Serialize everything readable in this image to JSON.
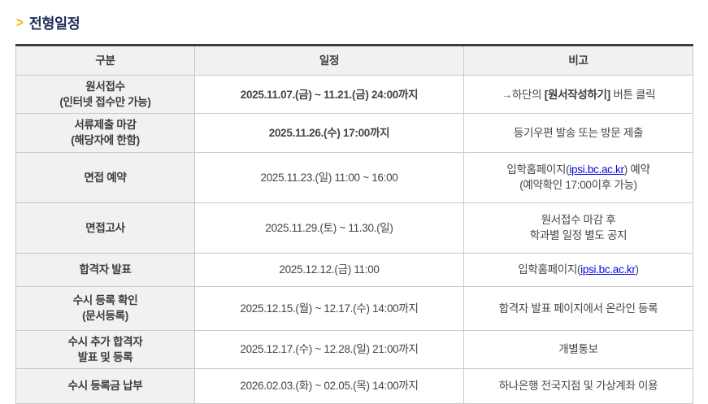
{
  "section": {
    "chevron": ">",
    "title": "전형일정"
  },
  "colors": {
    "accent_red": "#f50000",
    "accent_blue": "#0d08ee",
    "link_blue": "#0b06e0",
    "title_navy": "#1f2d5a",
    "chevron_gold": "#f7b500",
    "header_bg": "#f1f1ef"
  },
  "table": {
    "headers": {
      "category": "구분",
      "schedule": "일정",
      "remark": "비고"
    },
    "rows": [
      {
        "category": [
          "원서접수",
          "(인터넷 접수만 가능)"
        ],
        "schedule": "2025.11.07.(금) ~ 11.21.(금) 24:00까지",
        "remark_prefix": "→하단의 ",
        "remark_strong": "[원서작성하기]",
        "remark_suffix": " 버튼 클릭"
      },
      {
        "category": [
          "서류제출 마감",
          "(해당자에 한함)"
        ],
        "schedule": "2025.11.26.(수) 17:00까지",
        "remark": "등기우편 발송 또는 방문 제출"
      },
      {
        "category": "면접 예약",
        "schedule": "2025.11.23.(일) 11:00 ~ 16:00",
        "remark_prefix": "입학홈페이지(",
        "remark_link": "ipsi.bc.ac.kr",
        "remark_suffix": ") 예약",
        "remark_line2": "(예약확인 17:00이후 가능)"
      },
      {
        "category": "면접고사",
        "schedule": "2025.11.29.(토) ~ 11.30.(일)",
        "remark": [
          "원서접수 마감 후",
          "학과별 일정 별도 공지"
        ]
      },
      {
        "category": "합격자 발표",
        "schedule": "2025.12.12.(금) 11:00",
        "remark_prefix": "입학홈페이지(",
        "remark_link": "ipsi.bc.ac.kr",
        "remark_suffix": ")"
      },
      {
        "category": [
          "수시 등록 확인",
          "(문서등록)"
        ],
        "schedule": "2025.12.15.(월) ~ 12.17.(수) 14:00까지",
        "remark": "합격자 발표 페이지에서 온라인 등록"
      },
      {
        "category": [
          "수시 추가 합격자",
          "발표 및 등록"
        ],
        "schedule": "2025.12.17.(수) ~ 12.28.(일) 21:00까지",
        "remark": "개별통보"
      },
      {
        "category": "수시 등록금 납부",
        "schedule": "2026.02.03.(화) ~ 02.05.(목) 14:00까지",
        "remark": "하나은행 전국지점 및 가상계좌 이용"
      }
    ]
  }
}
